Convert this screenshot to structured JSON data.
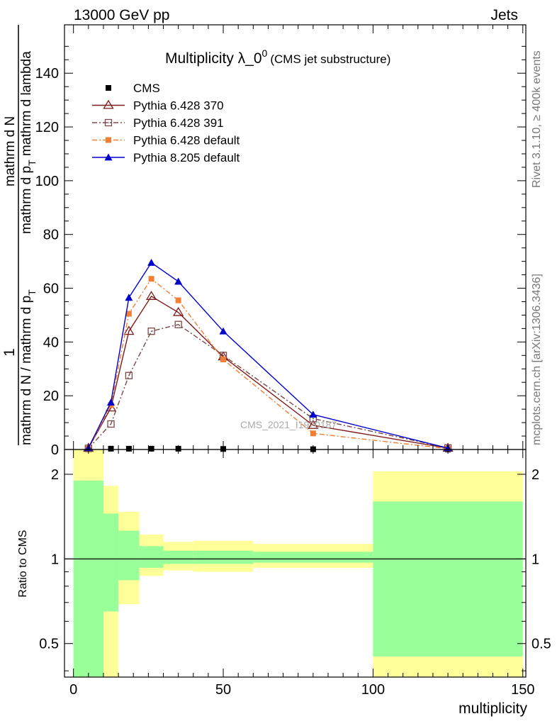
{
  "header": {
    "energy_label": "13000 GeV pp",
    "category_label": "Jets",
    "side_label_rivet": "Rivet 3.1.10, ≥ 400k events",
    "side_label_mcplots": "mcplots.cern.ch [arXiv:1306.3436]",
    "watermark": "CMS_2021_I1920187"
  },
  "chart_data": [
    {
      "type": "line",
      "title": "Multiplicity λ_0⁰",
      "title_main": "Multiplicity λ_0",
      "title_sup": "0",
      "subtitle": "(CMS jet substructure)",
      "ylabel_parts": [
        "1",
        "mathrm d N / mathrm d p",
        "T",
        "mathrm d N",
        "mathrm d p",
        "T",
        " mathrm d lambda"
      ],
      "xlabel": "multiplicity",
      "xlim": [
        -3,
        151
      ],
      "ylim": [
        0,
        158
      ],
      "yticks": [
        0,
        20,
        40,
        60,
        80,
        100,
        120,
        140
      ],
      "ytick_labels": [
        "0",
        "20",
        "40",
        "60",
        "80",
        "100",
        "120",
        "140"
      ],
      "legend_position": "top-left",
      "series": [
        {
          "name": "CMS",
          "color": "#000000",
          "marker": "square",
          "line": "none",
          "x": [
            5,
            12.5,
            18.5,
            26,
            35,
            50,
            80,
            125
          ],
          "y": [
            0.2,
            0.3,
            0.3,
            0.3,
            0.3,
            0.2,
            0.1,
            0.02
          ]
        },
        {
          "name": "Pythia 6.428 370",
          "color": "#7f1a1a",
          "marker": "triangle-open",
          "line": "solid",
          "x": [
            5,
            12.5,
            18.5,
            26,
            35,
            50,
            80,
            125
          ],
          "y": [
            0.5,
            15.5,
            44,
            57,
            51,
            34.5,
            9,
            0.5
          ]
        },
        {
          "name": "Pythia 6.428 391",
          "color": "#7a4a4a",
          "marker": "square-open",
          "line": "dashdot",
          "x": [
            5,
            12.5,
            18.5,
            26,
            35,
            50,
            80,
            125
          ],
          "y": [
            0.4,
            9.5,
            27.5,
            44,
            46.5,
            35,
            11.5,
            0.6
          ]
        },
        {
          "name": "Pythia 6.428 default",
          "color": "#f07f33",
          "marker": "square",
          "line": "dashdot",
          "x": [
            5,
            12.5,
            18.5,
            26,
            35,
            50,
            80,
            125
          ],
          "y": [
            0.5,
            16.5,
            50.5,
            63.5,
            55.5,
            33.5,
            6,
            0.3
          ]
        },
        {
          "name": "Pythia 8.205 default",
          "color": "#0000cc",
          "marker": "triangle",
          "line": "solid",
          "x": [
            5,
            12.5,
            18.5,
            26,
            35,
            50,
            80,
            125
          ],
          "y": [
            0.6,
            17.5,
            56.5,
            69.5,
            62.5,
            44,
            13,
            0.5
          ]
        }
      ]
    },
    {
      "type": "area",
      "title": "",
      "ylabel": "Ratio to CMS",
      "xlabel": "multiplicity",
      "xlim": [
        -3,
        151
      ],
      "ylim": [
        0.38,
        2.45
      ],
      "log_y": true,
      "yticks": [
        0.5,
        1,
        2
      ],
      "ytick_labels": [
        "0.5",
        "1",
        "2"
      ],
      "xticks": [
        0,
        50,
        100,
        150
      ],
      "xtick_labels": [
        "0",
        "50",
        "100",
        "150"
      ],
      "reference_line": 1,
      "bins": [
        {
          "lo": 0,
          "hi": 10,
          "green": [
            0.36,
            1.9
          ],
          "yellow": [
            0.36,
            2.45
          ]
        },
        {
          "lo": 10,
          "hi": 15,
          "green": [
            0.65,
            1.45
          ],
          "yellow": [
            0.36,
            1.82
          ]
        },
        {
          "lo": 15,
          "hi": 22,
          "green": [
            0.84,
            1.26
          ],
          "yellow": [
            0.69,
            1.47
          ]
        },
        {
          "lo": 22,
          "hi": 30,
          "green": [
            0.93,
            1.11
          ],
          "yellow": [
            0.87,
            1.22
          ]
        },
        {
          "lo": 30,
          "hi": 40,
          "green": [
            0.96,
            1.07
          ],
          "yellow": [
            0.91,
            1.15
          ]
        },
        {
          "lo": 40,
          "hi": 60,
          "green": [
            0.96,
            1.07
          ],
          "yellow": [
            0.9,
            1.16
          ]
        },
        {
          "lo": 60,
          "hi": 100,
          "green": [
            0.97,
            1.06
          ],
          "yellow": [
            0.93,
            1.13
          ]
        },
        {
          "lo": 100,
          "hi": 150,
          "green": [
            0.45,
            1.6
          ],
          "yellow": [
            0.36,
            2.05
          ]
        }
      ],
      "colors": {
        "green": "#99ff99",
        "yellow": "#ffff99"
      }
    }
  ]
}
